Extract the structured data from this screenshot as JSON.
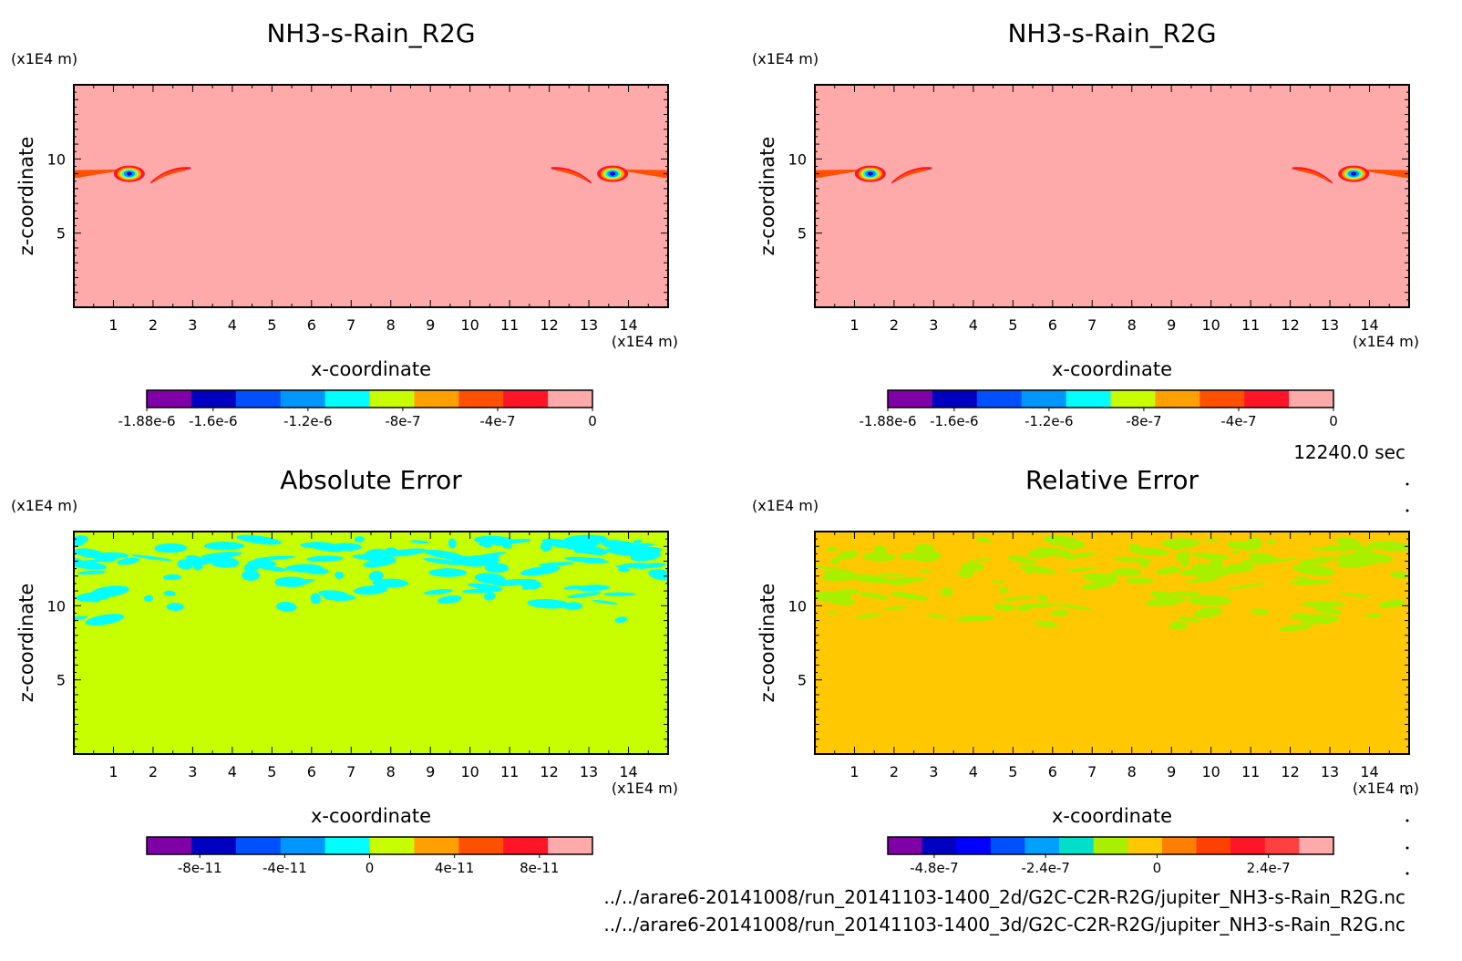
{
  "time_label": "12240.0 sec",
  "file_paths": [
    "../../arare6-20141008/run_20141103-1400_2d/G2C-C2R-R2G/jupiter_NH3-s-Rain_R2G.nc",
    "../../arare6-20141008/run_20141103-1400_3d/G2C-C2R-R2G/jupiter_NH3-s-Rain_R2G.nc"
  ],
  "chart_data": [
    {
      "type": "heatmap",
      "title": "NH3-s-Rain_R2G",
      "xlabel": "x-coordinate",
      "ylabel": "z-coordinate",
      "x_unit": "(x1E4 m)",
      "y_unit": "(x1E4 m)",
      "xlim": [
        0,
        15
      ],
      "ylim": [
        0,
        15
      ],
      "x_ticks": [
        "1",
        "2",
        "3",
        "4",
        "5",
        "6",
        "7",
        "8",
        "9",
        "10",
        "11",
        "12",
        "13",
        "14"
      ],
      "y_ticks": [
        "5",
        "10"
      ],
      "background_color": "#ffaaaa",
      "colorbar": {
        "colors": [
          "#8000a8",
          "#0000c0",
          "#0050ff",
          "#0096ff",
          "#00ffff",
          "#c8ff00",
          "#ffa000",
          "#ff5000",
          "#ff1428",
          "#ffaaaa"
        ],
        "labels": [
          "-1.88e-6",
          "-1.6e-6",
          "-1.2e-6",
          "-8e-7",
          "-4e-7",
          "0"
        ],
        "label_values": [
          -1.88e-06,
          -1.6e-06,
          -1.2e-06,
          -8e-07,
          -4e-07,
          0
        ],
        "range": [
          -1.88e-06,
          0
        ]
      },
      "features": [
        {
          "x": 1.4,
          "z": 9.0,
          "kind": "core"
        },
        {
          "x": 2.4,
          "z": 9.2,
          "kind": "streak"
        },
        {
          "x": 13.6,
          "z": 9.0,
          "kind": "core"
        },
        {
          "x": 12.6,
          "z": 9.2,
          "kind": "streak"
        }
      ]
    },
    {
      "type": "heatmap",
      "title": "NH3-s-Rain_R2G",
      "xlabel": "x-coordinate",
      "ylabel": "z-coordinate",
      "x_unit": "(x1E4 m)",
      "y_unit": "(x1E4 m)",
      "xlim": [
        0,
        15
      ],
      "ylim": [
        0,
        15
      ],
      "x_ticks": [
        "1",
        "2",
        "3",
        "4",
        "5",
        "6",
        "7",
        "8",
        "9",
        "10",
        "11",
        "12",
        "13",
        "14"
      ],
      "y_ticks": [
        "5",
        "10"
      ],
      "background_color": "#ffaaaa",
      "colorbar": {
        "colors": [
          "#8000a8",
          "#0000c0",
          "#0050ff",
          "#0096ff",
          "#00ffff",
          "#c8ff00",
          "#ffa000",
          "#ff5000",
          "#ff1428",
          "#ffaaaa"
        ],
        "labels": [
          "-1.88e-6",
          "-1.6e-6",
          "-1.2e-6",
          "-8e-7",
          "-4e-7",
          "0"
        ],
        "label_values": [
          -1.88e-06,
          -1.6e-06,
          -1.2e-06,
          -8e-07,
          -4e-07,
          0
        ],
        "range": [
          -1.88e-06,
          0
        ]
      },
      "features": [
        {
          "x": 1.4,
          "z": 9.0,
          "kind": "core"
        },
        {
          "x": 2.4,
          "z": 9.2,
          "kind": "streak"
        },
        {
          "x": 13.6,
          "z": 9.0,
          "kind": "core"
        },
        {
          "x": 12.6,
          "z": 9.2,
          "kind": "streak"
        }
      ]
    },
    {
      "type": "heatmap",
      "title": "Absolute Error",
      "xlabel": "x-coordinate",
      "ylabel": "z-coordinate",
      "x_unit": "(x1E4 m)",
      "y_unit": "(x1E4 m)",
      "xlim": [
        0,
        15
      ],
      "ylim": [
        0,
        15
      ],
      "x_ticks": [
        "1",
        "2",
        "3",
        "4",
        "5",
        "6",
        "7",
        "8",
        "9",
        "10",
        "11",
        "12",
        "13",
        "14"
      ],
      "y_ticks": [
        "5",
        "10"
      ],
      "background_color": "#c8ff00",
      "patch_color": "#00ffff",
      "patch_band_z": [
        9,
        14.5
      ],
      "colorbar": {
        "colors": [
          "#8000a8",
          "#0000c0",
          "#0050ff",
          "#0096ff",
          "#00ffff",
          "#c8ff00",
          "#ffa000",
          "#ff5000",
          "#ff1428",
          "#ffaaaa"
        ],
        "labels": [
          "-8e-11",
          "-4e-11",
          "0",
          "4e-11",
          "8e-11"
        ],
        "label_values": [
          -8e-11,
          -4e-11,
          0,
          4e-11,
          8e-11
        ],
        "range": [
          -1.05e-10,
          1.05e-10
        ]
      }
    },
    {
      "type": "heatmap",
      "title": "Relative Error",
      "xlabel": "x-coordinate",
      "ylabel": "z-coordinate",
      "x_unit": "(x1E4 m)",
      "y_unit": "(x1E4 m)",
      "xlim": [
        0,
        15
      ],
      "ylim": [
        0,
        15
      ],
      "x_ticks": [
        "1",
        "2",
        "3",
        "4",
        "5",
        "6",
        "7",
        "8",
        "9",
        "10",
        "11",
        "12",
        "13",
        "14"
      ],
      "y_ticks": [
        "5",
        "10"
      ],
      "background_color": "#ffc800",
      "patch_color": "#a8f000",
      "patch_band_z": [
        8.5,
        14.5
      ],
      "colorbar": {
        "colors": [
          "#8000a8",
          "#0000c0",
          "#0000ff",
          "#0050ff",
          "#00a0ff",
          "#00e0c8",
          "#a8f000",
          "#ffc800",
          "#ff8000",
          "#ff4000",
          "#ff1428",
          "#ff4040",
          "#ffaaaa"
        ],
        "labels": [
          "-4.8e-7",
          "-2.4e-7",
          "0",
          "2.4e-7"
        ],
        "label_values": [
          -4.8e-07,
          -2.4e-07,
          0,
          2.4e-07
        ],
        "range": [
          -5.8e-07,
          3.8e-07
        ]
      }
    }
  ]
}
